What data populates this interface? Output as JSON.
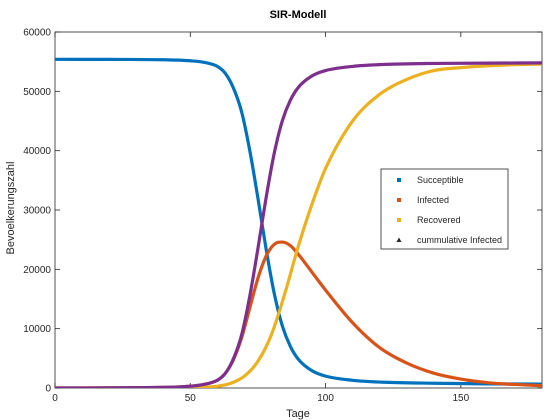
{
  "chart_data": {
    "type": "line",
    "title": "SIR-Modell",
    "xlabel": "Tage",
    "ylabel": "Bevoelkerungszahl",
    "xlim": [
      0,
      180
    ],
    "ylim": [
      0,
      60000
    ],
    "xticks": [
      "0",
      "50",
      "100",
      "150"
    ],
    "yticks": [
      "0",
      "10000",
      "20000",
      "30000",
      "40000",
      "50000",
      "60000"
    ],
    "grid": false,
    "legend_position": "center-right",
    "series": [
      {
        "name": "Succeptible",
        "color": "#0072bd",
        "marker": "square",
        "x": [
          0,
          20,
          40,
          50,
          55,
          60,
          63,
          66,
          69,
          72,
          75,
          78,
          81,
          84,
          87,
          90,
          95,
          100,
          110,
          120,
          140,
          160,
          180
        ],
        "y": [
          55400,
          55380,
          55320,
          55150,
          54900,
          54200,
          53000,
          50500,
          46500,
          40000,
          32000,
          23500,
          16000,
          10500,
          7000,
          4800,
          2900,
          2000,
          1300,
          1000,
          800,
          700,
          650
        ]
      },
      {
        "name": "Infected",
        "color": "#d95319",
        "marker": "square",
        "x": [
          0,
          40,
          50,
          55,
          60,
          63,
          66,
          69,
          72,
          75,
          78,
          81,
          84,
          87,
          90,
          95,
          100,
          110,
          120,
          130,
          140,
          150,
          160,
          170,
          180
        ],
        "y": [
          0,
          100,
          300,
          600,
          1300,
          2500,
          4800,
          8500,
          13500,
          18500,
          22200,
          24200,
          24600,
          24000,
          22500,
          19500,
          16500,
          11000,
          6800,
          4200,
          2500,
          1500,
          900,
          600,
          400
        ]
      },
      {
        "name": "Recovered",
        "color": "#edb120",
        "marker": "square",
        "x": [
          0,
          40,
          50,
          55,
          60,
          65,
          70,
          75,
          80,
          85,
          90,
          95,
          100,
          110,
          120,
          130,
          140,
          150,
          160,
          170,
          180
        ],
        "y": [
          0,
          20,
          60,
          120,
          300,
          800,
          2000,
          4500,
          9000,
          16000,
          24000,
          31000,
          37000,
          45000,
          49500,
          52000,
          53500,
          54000,
          54300,
          54500,
          54600
        ]
      },
      {
        "name": "cummulative  Infected",
        "color": "#7e2f8e",
        "marker": "triangle",
        "x": [
          0,
          40,
          50,
          55,
          60,
          63,
          66,
          69,
          72,
          75,
          78,
          81,
          84,
          87,
          90,
          95,
          100,
          110,
          120,
          140,
          160,
          180
        ],
        "y": [
          0,
          100,
          300,
          600,
          1300,
          2500,
          5000,
          9000,
          15500,
          23500,
          32000,
          39500,
          45000,
          48500,
          50700,
          52600,
          53500,
          54200,
          54500,
          54700,
          54750,
          54800
        ]
      }
    ]
  }
}
